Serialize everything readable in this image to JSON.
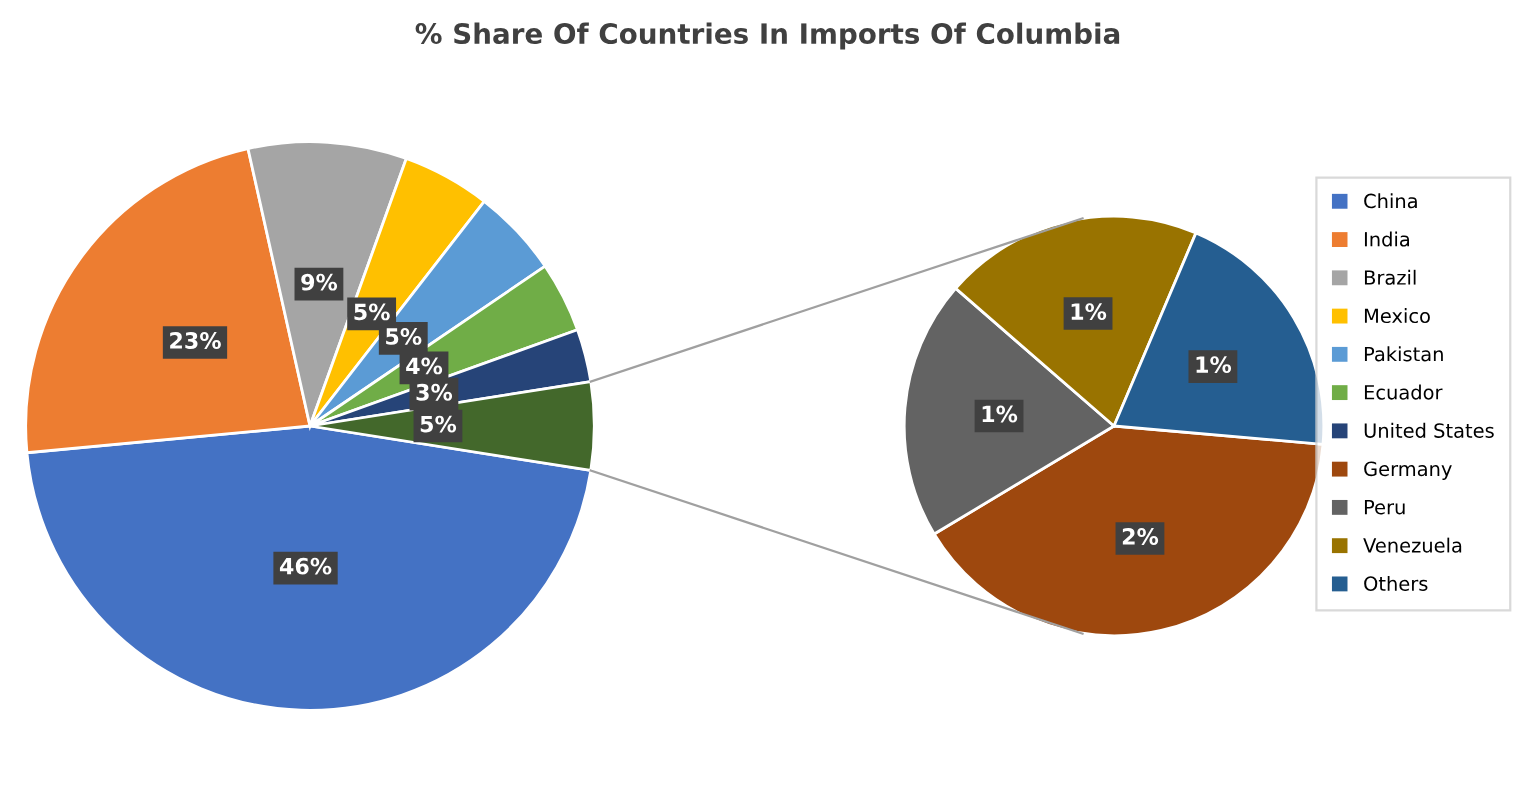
{
  "chart_data": [
    {
      "type": "pie",
      "title": "% Share Of Countries In Imports Of Columbia",
      "categories": [
        "China",
        "India",
        "Brazil",
        "Mexico",
        "Pakistan",
        "Ecuador",
        "United States",
        null
      ],
      "values": [
        46,
        23,
        9,
        5,
        5,
        4,
        3,
        5
      ],
      "value_labels": [
        "46%",
        "23%",
        "9%",
        "5%",
        "5%",
        "4%",
        "3%",
        "5%"
      ],
      "colors": [
        "#4472c4",
        "#ed7d31",
        "#a5a5a5",
        "#ffc000",
        "#5b9bd5",
        "#70ad47",
        "#264478",
        "#43682b"
      ],
      "legend": "right"
    },
    {
      "type": "pie",
      "categories": [
        "Germany",
        "Peru",
        "Venezuela",
        "Others"
      ],
      "values": [
        2,
        1,
        1,
        1
      ],
      "value_labels": [
        "2%",
        "1%",
        "1%",
        "1%"
      ],
      "colors": [
        "#9e480e",
        "#636363",
        "#997300",
        "#255e91"
      ],
      "legend": "right"
    }
  ]
}
